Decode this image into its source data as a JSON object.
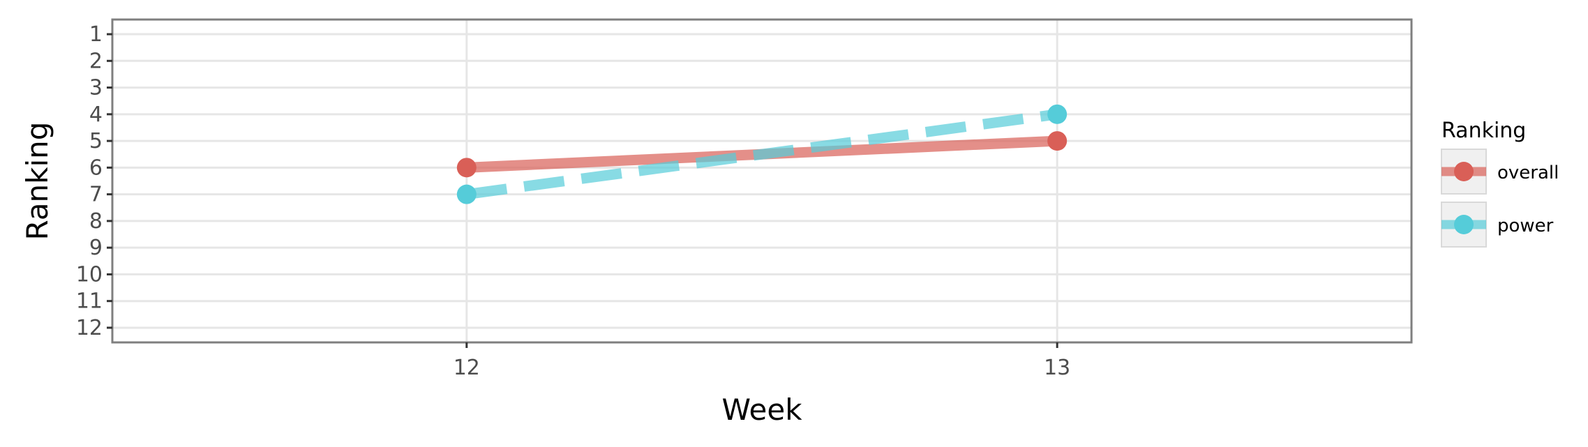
{
  "chart_data": {
    "type": "line",
    "xlabel": "Week",
    "ylabel": "Ranking",
    "x": [
      12,
      13
    ],
    "xticks": [
      "12",
      "13"
    ],
    "xlim": [
      11.4,
      13.6
    ],
    "yticks": [
      "1",
      "2",
      "3",
      "4",
      "5",
      "6",
      "7",
      "8",
      "9",
      "10",
      "11",
      "12"
    ],
    "ylim": [
      12.55,
      0.45
    ],
    "y_reversed": true,
    "grid": true,
    "legend": {
      "title": "Ranking",
      "position": "right"
    },
    "series": [
      {
        "name": "overall",
        "color": "#d95f57",
        "linestyle": "solid",
        "values": [
          6,
          5
        ]
      },
      {
        "name": "power",
        "color": "#55ccd9",
        "linestyle": "dashed",
        "values": [
          7,
          4
        ]
      }
    ]
  }
}
